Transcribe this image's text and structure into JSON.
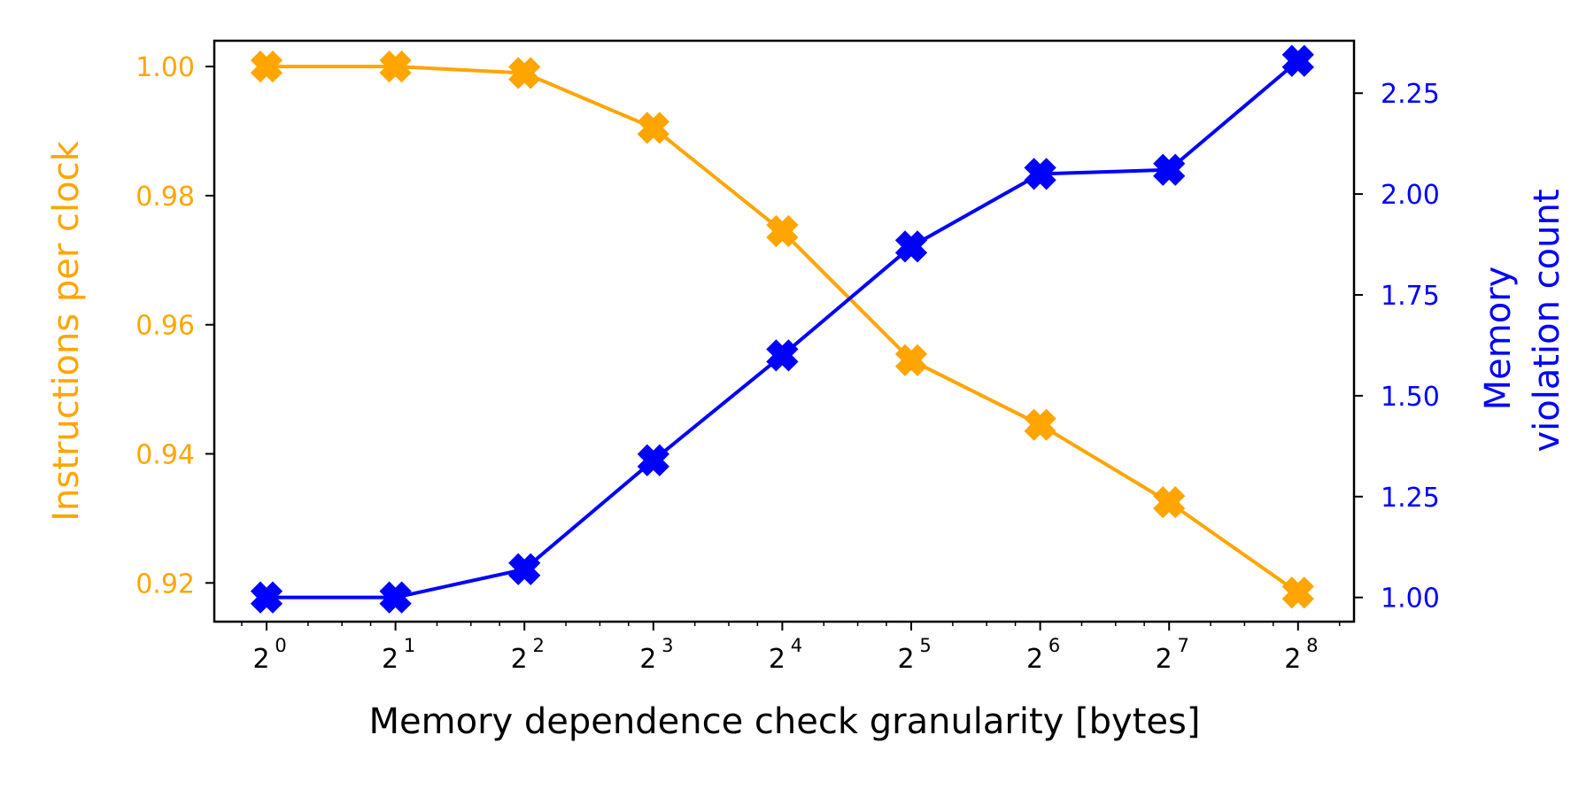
{
  "chart_data": {
    "type": "line",
    "title": "",
    "xlabel": "Memory dependence check granularity [bytes]",
    "ylabel_left": "Instructions per clock",
    "ylabel_right_lines": [
      "Memory",
      "violation count"
    ],
    "x_scale": "log2",
    "x": [
      1,
      2,
      4,
      8,
      16,
      32,
      64,
      128,
      256
    ],
    "x_tick_labels": [
      {
        "base": "2",
        "exp": "0"
      },
      {
        "base": "2",
        "exp": "1"
      },
      {
        "base": "2",
        "exp": "2"
      },
      {
        "base": "2",
        "exp": "3"
      },
      {
        "base": "2",
        "exp": "4"
      },
      {
        "base": "2",
        "exp": "5"
      },
      {
        "base": "2",
        "exp": "6"
      },
      {
        "base": "2",
        "exp": "7"
      },
      {
        "base": "2",
        "exp": "8"
      }
    ],
    "ylim_left": [
      0.914,
      1.004
    ],
    "yticks_left": [
      "0.92",
      "0.94",
      "0.96",
      "0.98",
      "1.00"
    ],
    "ylim_right": [
      0.94,
      2.38
    ],
    "yticks_right": [
      "1.00",
      "1.25",
      "1.50",
      "1.75",
      "2.00",
      "2.25"
    ],
    "grid": false,
    "series": [
      {
        "axis": "left",
        "color": "#FFA500",
        "marker": "X",
        "values": [
          1.0,
          1.0,
          0.999,
          0.9905,
          0.9745,
          0.9545,
          0.9445,
          0.9325,
          0.9185
        ]
      },
      {
        "axis": "right",
        "color": "#0000FF",
        "marker": "X",
        "values": [
          1.0,
          1.0,
          1.07,
          1.34,
          1.6,
          1.87,
          2.05,
          2.06,
          2.33
        ]
      }
    ]
  }
}
